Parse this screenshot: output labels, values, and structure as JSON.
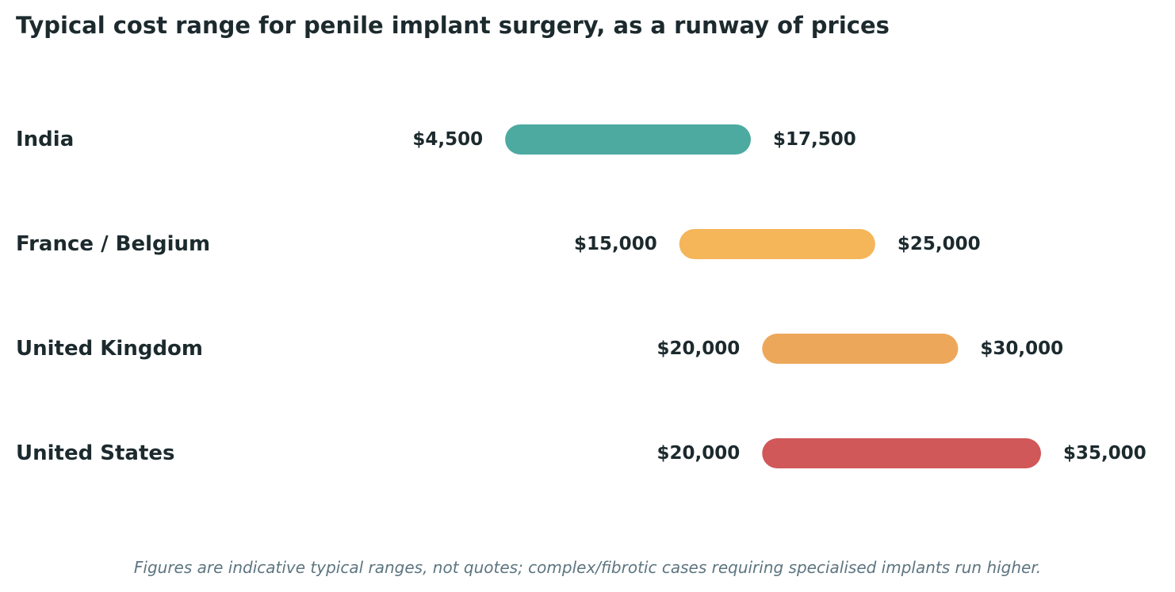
{
  "chart_data": {
    "type": "range-bar",
    "title": "Typical cost range for penile implant surgery, as a runway of prices",
    "footnote": "Figures are indicative typical ranges, not quotes; complex/fibrotic cases requiring specialised implants run higher.",
    "currency_prefix": "$",
    "categories": [
      "India",
      "France / Belgium",
      "United Kingdom",
      "United States"
    ],
    "ranges": [
      {
        "category": "India",
        "low": 4500,
        "high": 17500,
        "low_label": "$4,500",
        "high_label": "$17,500",
        "color": "#4daaa0"
      },
      {
        "category": "France / Belgium",
        "low": 15000,
        "high": 25000,
        "low_label": "$15,000",
        "high_label": "$25,000",
        "color": "#f4b659"
      },
      {
        "category": "United Kingdom",
        "low": 20000,
        "high": 30000,
        "low_label": "$20,000",
        "high_label": "$30,000",
        "color": "#eda75a"
      },
      {
        "category": "United States",
        "low": 20000,
        "high": 35000,
        "low_label": "$20,000",
        "high_label": "$35,000",
        "color": "#d05858"
      }
    ],
    "xlim": [
      0,
      35000
    ],
    "grid": false,
    "legend": "none",
    "axes_visible": false
  }
}
